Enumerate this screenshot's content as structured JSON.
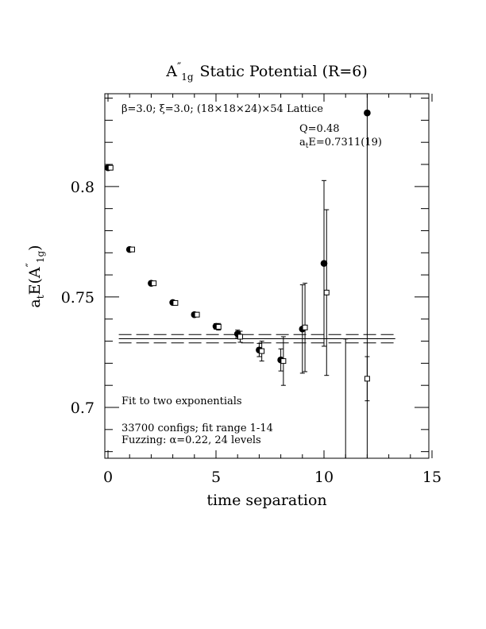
{
  "chart_data": {
    "type": "scatter",
    "title_main": "A",
    "title_prime": "″",
    "title_sub": "1g",
    "title_rest": "Static Potential (R=6)",
    "xlabel": "time separation",
    "ylabel_a": "a",
    "ylabel_t": "t",
    "ylabel_e": "E(A",
    "ylabel_prime": "″",
    "ylabel_sub": "1g",
    "ylabel_close": ")",
    "xlim": [
      0,
      15
    ],
    "ylim": [
      0.677,
      0.842
    ],
    "xticks": [
      0,
      5,
      10,
      15
    ],
    "xtick_labels": [
      "0",
      "5",
      "10",
      "15"
    ],
    "yticks": [
      0.7,
      0.75,
      0.8
    ],
    "ytick_labels": [
      "0.7",
      "0.75",
      "0.8"
    ],
    "header_line": "β=3.0; ξ=3.0; (18×18×24)×54 Lattice",
    "q_label": "Q=0.48",
    "fit_a": "a",
    "fit_t": "t",
    "fit_rest": "E=0.7311(19)",
    "fit_note": "Fit to two exponentials",
    "configs_note": "33700 configs; fit range 1-14",
    "fuzz_note": "Fuzzing: α=0.22, 24 levels",
    "fit": {
      "value": 0.7311,
      "error": 0.0019,
      "x_from": 0.5,
      "x_to": 13.3
    },
    "series": [
      {
        "marker": "filled-circle",
        "points": [
          {
            "x": 0,
            "y": 0.8085,
            "err": 0.0006
          },
          {
            "x": 1,
            "y": 0.7715,
            "err": 0.0006
          },
          {
            "x": 2,
            "y": 0.7562,
            "err": 0.0007
          },
          {
            "x": 3,
            "y": 0.7475,
            "err": 0.0007
          },
          {
            "x": 4,
            "y": 0.742,
            "err": 0.0008
          },
          {
            "x": 5,
            "y": 0.7367,
            "err": 0.0012
          },
          {
            "x": 6,
            "y": 0.7333,
            "err": 0.0017
          },
          {
            "x": 7,
            "y": 0.726,
            "err": 0.003
          },
          {
            "x": 8,
            "y": 0.7215,
            "err": 0.005
          },
          {
            "x": 9,
            "y": 0.7355,
            "err": 0.02
          },
          {
            "x": 10,
            "y": 0.7652,
            "err": 0.0375
          },
          {
            "x": 12,
            "y": 0.8333,
            "err": 0.2
          }
        ]
      },
      {
        "marker": "open-square",
        "points": [
          {
            "x": 0.12,
            "y": 0.8085,
            "err": 0.0008
          },
          {
            "x": 1.12,
            "y": 0.7715,
            "err": 0.0008
          },
          {
            "x": 2.12,
            "y": 0.7562,
            "err": 0.0008
          },
          {
            "x": 3.12,
            "y": 0.7473,
            "err": 0.0009
          },
          {
            "x": 4.12,
            "y": 0.742,
            "err": 0.001
          },
          {
            "x": 5.12,
            "y": 0.7365,
            "err": 0.0015
          },
          {
            "x": 6.12,
            "y": 0.732,
            "err": 0.0025
          },
          {
            "x": 7.12,
            "y": 0.7255,
            "err": 0.0045
          },
          {
            "x": 8.12,
            "y": 0.721,
            "err": 0.011
          },
          {
            "x": 9.12,
            "y": 0.7362,
            "err": 0.02
          },
          {
            "x": 10.12,
            "y": 0.752,
            "err": 0.0375
          },
          {
            "x": 11.0,
            "y": 0.668,
            "err": 0.063
          },
          {
            "x": 12.0,
            "y": 0.713,
            "err": 0.01
          }
        ]
      }
    ]
  }
}
